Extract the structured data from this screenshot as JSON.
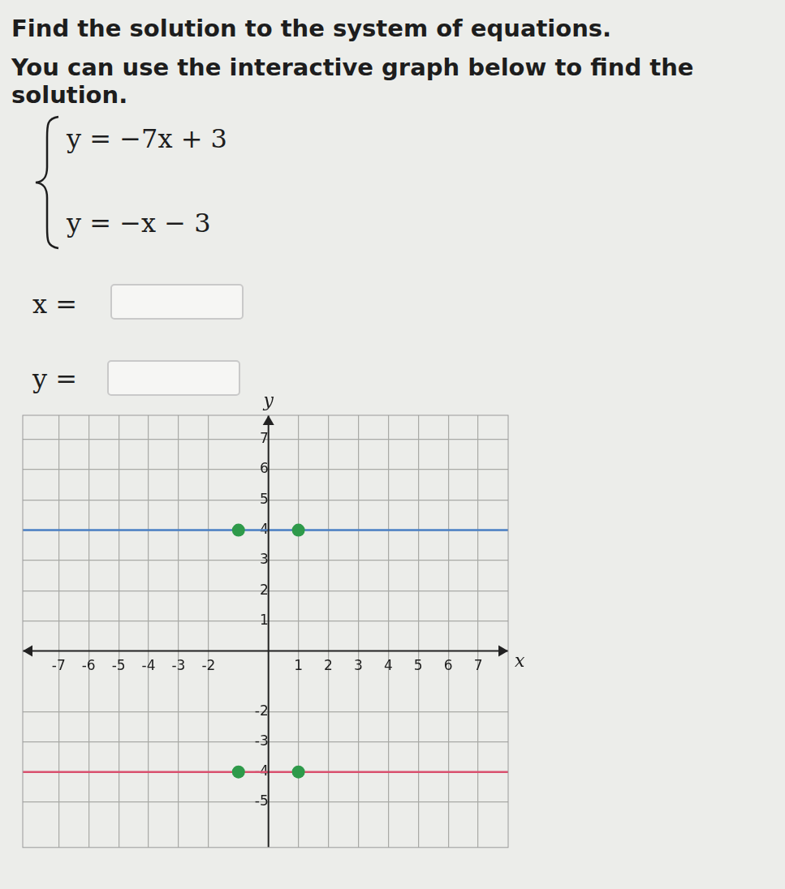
{
  "problem": {
    "title": "Find the solution to the system of equations.",
    "instruction": "You can use the interactive graph below to find the solution.",
    "equations": [
      "y = −7x + 3",
      "y = −x − 3"
    ],
    "answers": [
      "x =",
      "y ="
    ]
  },
  "chart_data": {
    "type": "line",
    "x_label": "x",
    "y_label": "y",
    "xlim": [
      -8.2,
      8
    ],
    "ylim": [
      -6.5,
      7.8
    ],
    "xticks": [
      -7,
      -6,
      -5,
      -4,
      -3,
      -2,
      1,
      2,
      3,
      4,
      5,
      6,
      7
    ],
    "yticks": [
      -5,
      -4,
      -3,
      -2,
      1,
      2,
      3,
      4,
      5,
      6,
      7
    ],
    "grid": true,
    "series": [
      {
        "type": "line",
        "color": "#4a7fc4",
        "x": [
          -8.2,
          8
        ],
        "values": [
          4,
          4
        ]
      },
      {
        "type": "scatter",
        "color": "#2e9a4a",
        "x": [
          -1,
          1
        ],
        "values": [
          4,
          4
        ]
      },
      {
        "type": "line",
        "color": "#d9506e",
        "x": [
          -8.2,
          8
        ],
        "values": [
          -4,
          -4
        ]
      },
      {
        "type": "scatter",
        "color": "#2e9a4a",
        "x": [
          -1,
          1
        ],
        "values": [
          -4,
          -4
        ]
      }
    ]
  }
}
